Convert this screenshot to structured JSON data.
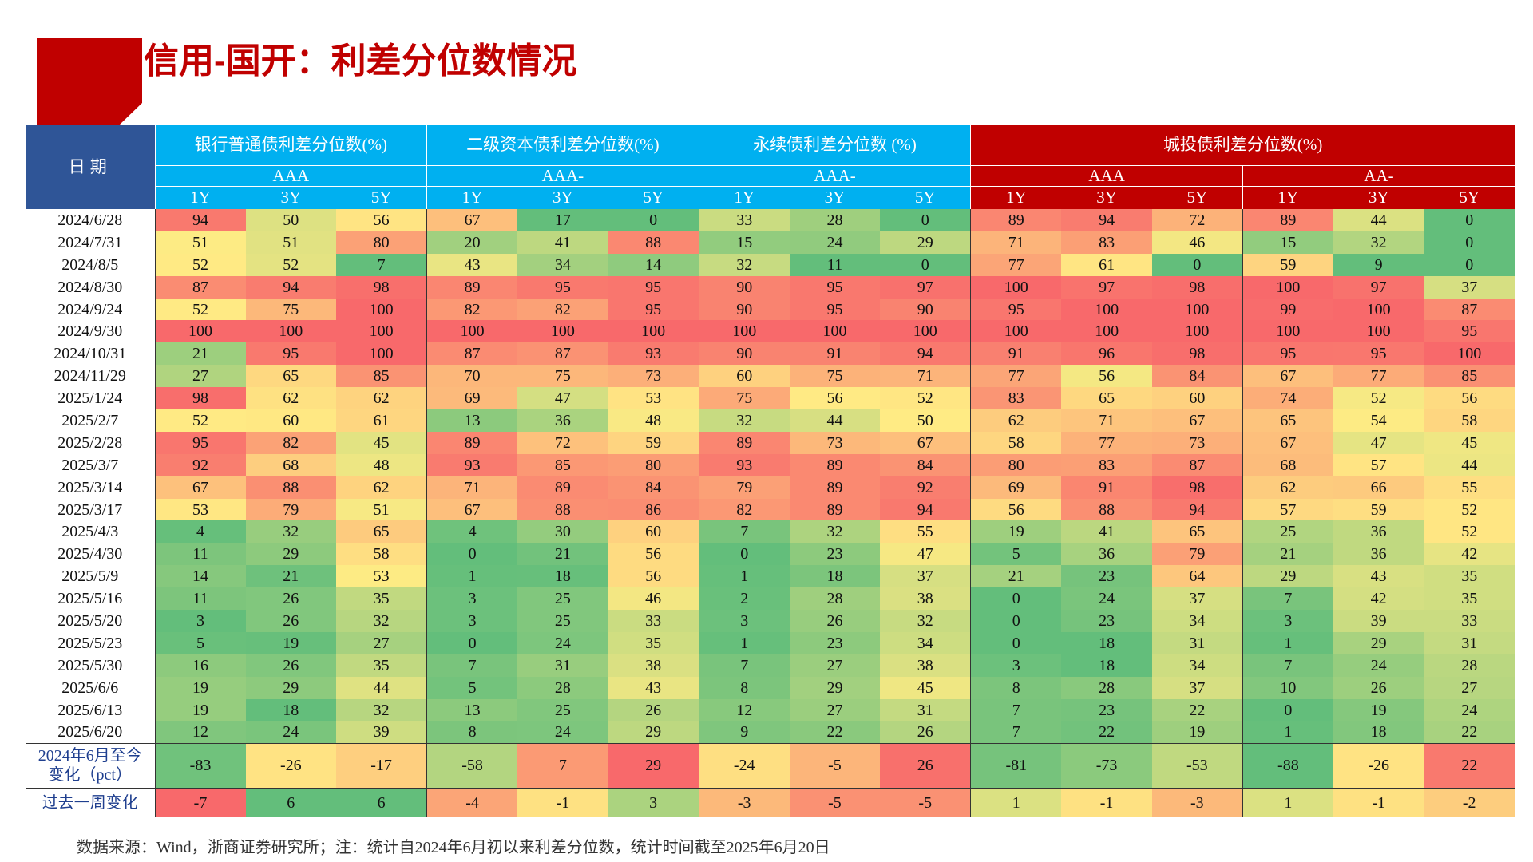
{
  "header": {
    "title": "信用-国开：利差分位数情况"
  },
  "table": {
    "date_header": "日期",
    "groups": [
      {
        "name": "银行普通债利差分位数(%)",
        "color": "#00b0f0",
        "ratings": [
          {
            "name": "AAA",
            "terms": [
              "1Y",
              "3Y",
              "5Y"
            ]
          }
        ]
      },
      {
        "name": "二级资本债利差分位数(%)",
        "color": "#00b0f0",
        "ratings": [
          {
            "name": "AAA-",
            "terms": [
              "1Y",
              "3Y",
              "5Y"
            ]
          }
        ]
      },
      {
        "name": "永续债利差分位数 (%)",
        "color": "#00b0f0",
        "ratings": [
          {
            "name": "AAA-",
            "terms": [
              "1Y",
              "3Y",
              "5Y"
            ]
          }
        ]
      },
      {
        "name": "城投债利差分位数(%)",
        "color": "#c00000",
        "ratings": [
          {
            "name": "AAA",
            "terms": [
              "1Y",
              "3Y",
              "5Y"
            ]
          },
          {
            "name": "AA-",
            "terms": [
              "1Y",
              "3Y",
              "5Y"
            ]
          }
        ]
      }
    ],
    "rows": [
      {
        "date": "2024/6/28",
        "values": [
          94,
          50,
          56,
          67,
          17,
          0,
          33,
          28,
          0,
          89,
          94,
          72,
          89,
          44,
          0
        ]
      },
      {
        "date": "2024/7/31",
        "values": [
          51,
          51,
          80,
          20,
          41,
          88,
          15,
          24,
          29,
          71,
          83,
          46,
          15,
          32,
          0
        ]
      },
      {
        "date": "2024/8/5",
        "values": [
          52,
          52,
          7,
          43,
          34,
          14,
          32,
          11,
          0,
          77,
          61,
          0,
          59,
          9,
          0
        ]
      },
      {
        "date": "2024/8/30",
        "values": [
          87,
          94,
          98,
          89,
          95,
          95,
          90,
          95,
          97,
          100,
          97,
          98,
          100,
          97,
          37
        ]
      },
      {
        "date": "2024/9/24",
        "values": [
          52,
          75,
          100,
          82,
          82,
          95,
          90,
          95,
          90,
          95,
          100,
          100,
          99,
          100,
          87
        ]
      },
      {
        "date": "2024/9/30",
        "values": [
          100,
          100,
          100,
          100,
          100,
          100,
          100,
          100,
          100,
          100,
          100,
          100,
          100,
          100,
          95
        ]
      },
      {
        "date": "2024/10/31",
        "values": [
          21,
          95,
          100,
          87,
          87,
          93,
          90,
          91,
          94,
          91,
          96,
          98,
          95,
          95,
          100
        ]
      },
      {
        "date": "2024/11/29",
        "values": [
          27,
          65,
          85,
          70,
          75,
          73,
          60,
          75,
          71,
          77,
          56,
          84,
          67,
          77,
          85
        ]
      },
      {
        "date": "2025/1/24",
        "values": [
          98,
          62,
          62,
          69,
          47,
          53,
          75,
          56,
          52,
          83,
          65,
          60,
          74,
          52,
          56
        ]
      },
      {
        "date": "2025/2/7",
        "values": [
          52,
          60,
          61,
          13,
          36,
          48,
          32,
          44,
          50,
          62,
          71,
          67,
          65,
          54,
          58
        ]
      },
      {
        "date": "2025/2/28",
        "values": [
          95,
          82,
          45,
          89,
          72,
          59,
          89,
          73,
          67,
          58,
          77,
          73,
          67,
          47,
          45
        ]
      },
      {
        "date": "2025/3/7",
        "values": [
          92,
          68,
          48,
          93,
          85,
          80,
          93,
          89,
          84,
          80,
          83,
          87,
          68,
          57,
          44
        ]
      },
      {
        "date": "2025/3/14",
        "values": [
          67,
          88,
          62,
          71,
          89,
          84,
          79,
          89,
          92,
          69,
          91,
          98,
          62,
          66,
          55
        ]
      },
      {
        "date": "2025/3/17",
        "values": [
          53,
          79,
          51,
          67,
          88,
          86,
          82,
          89,
          94,
          56,
          88,
          94,
          57,
          59,
          52
        ]
      },
      {
        "date": "2025/4/3",
        "values": [
          4,
          32,
          65,
          4,
          30,
          60,
          7,
          32,
          55,
          19,
          41,
          65,
          25,
          36,
          52
        ]
      },
      {
        "date": "2025/4/30",
        "values": [
          11,
          29,
          58,
          0,
          21,
          56,
          0,
          23,
          47,
          5,
          36,
          79,
          21,
          36,
          42
        ]
      },
      {
        "date": "2025/5/9",
        "values": [
          14,
          21,
          53,
          1,
          18,
          56,
          1,
          18,
          37,
          21,
          23,
          64,
          29,
          43,
          35
        ]
      },
      {
        "date": "2025/5/16",
        "values": [
          11,
          26,
          35,
          3,
          25,
          46,
          2,
          28,
          38,
          0,
          24,
          37,
          7,
          42,
          35
        ]
      },
      {
        "date": "2025/5/20",
        "values": [
          3,
          26,
          32,
          3,
          25,
          33,
          3,
          26,
          32,
          0,
          23,
          34,
          3,
          39,
          33
        ]
      },
      {
        "date": "2025/5/23",
        "values": [
          5,
          19,
          27,
          0,
          24,
          35,
          1,
          23,
          34,
          0,
          18,
          31,
          1,
          29,
          31
        ]
      },
      {
        "date": "2025/5/30",
        "values": [
          16,
          26,
          35,
          7,
          31,
          38,
          7,
          27,
          38,
          3,
          18,
          34,
          7,
          24,
          28
        ]
      },
      {
        "date": "2025/6/6",
        "values": [
          19,
          29,
          44,
          5,
          28,
          43,
          8,
          29,
          45,
          8,
          28,
          37,
          10,
          26,
          27
        ]
      },
      {
        "date": "2025/6/13",
        "values": [
          19,
          18,
          32,
          13,
          25,
          26,
          12,
          27,
          31,
          7,
          23,
          22,
          0,
          19,
          24
        ]
      },
      {
        "date": "2025/6/20",
        "values": [
          12,
          24,
          39,
          8,
          24,
          29,
          9,
          22,
          26,
          7,
          22,
          19,
          1,
          18,
          22
        ]
      }
    ],
    "summary_rows": [
      {
        "label": [
          "2024年6月至今",
          "变化（pct）"
        ],
        "values": [
          -83,
          -26,
          -17,
          -58,
          7,
          29,
          -24,
          -5,
          26,
          -81,
          -73,
          -53,
          -88,
          -26,
          22
        ]
      },
      {
        "label": [
          "过去一周变化"
        ],
        "values": [
          -7,
          6,
          6,
          -4,
          -1,
          3,
          -3,
          -5,
          -5,
          1,
          -1,
          -3,
          1,
          -1,
          -2
        ]
      }
    ]
  },
  "footer": {
    "source": "数据来源：Wind，浙商证券研究所；注：统计自2024年6月初以来利差分位数，统计时间截至2025年6月20日"
  }
}
